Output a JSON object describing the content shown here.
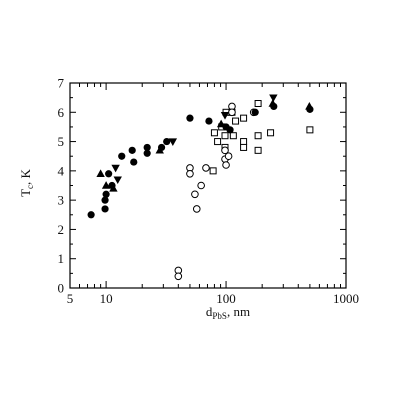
{
  "chart_data": {
    "type": "scatter",
    "title": "",
    "xlabel": "d",
    "xlabel_sub": "PbS",
    "xlabel_unit": ", nm",
    "ylabel": "T",
    "ylabel_sub": "c",
    "ylabel_unit": ", K",
    "x_scale": "log",
    "xlim": [
      5,
      1000
    ],
    "ylim": [
      0,
      7
    ],
    "x_ticks": [
      5,
      10,
      100,
      1000
    ],
    "x_tick_labels": [
      "5",
      "10",
      "100",
      "1000"
    ],
    "y_ticks": [
      0,
      1,
      2,
      3,
      4,
      5,
      6,
      7
    ],
    "y_tick_labels": [
      "0",
      "1",
      "2",
      "3",
      "4",
      "5",
      "6",
      "7"
    ],
    "grid": false,
    "series": [
      {
        "marker": "filled-circle",
        "color": "#000000",
        "points": [
          [
            7.5,
            2.5
          ],
          [
            9.8,
            2.7
          ],
          [
            9.8,
            3.0
          ],
          [
            10,
            3.2
          ],
          [
            10.5,
            3.9
          ],
          [
            11.2,
            3.5
          ],
          [
            13.5,
            4.5
          ],
          [
            16.5,
            4.7
          ],
          [
            17,
            4.3
          ],
          [
            22,
            4.8
          ],
          [
            22,
            4.6
          ],
          [
            29,
            4.8
          ],
          [
            32,
            5.0
          ],
          [
            50,
            5.8
          ],
          [
            72,
            5.7
          ],
          [
            100,
            5.5
          ],
          [
            108,
            5.4
          ],
          [
            175,
            6.0
          ],
          [
            250,
            6.2
          ],
          [
            500,
            6.1
          ]
        ]
      },
      {
        "marker": "filled-triangle-up",
        "color": "#000000",
        "points": [
          [
            9,
            3.9
          ],
          [
            10,
            3.5
          ],
          [
            11.5,
            3.4
          ],
          [
            28,
            4.7
          ],
          [
            91,
            5.6
          ],
          [
            245,
            6.3
          ],
          [
            495,
            6.2
          ]
        ]
      },
      {
        "marker": "filled-triangle-down",
        "color": "#000000",
        "points": [
          [
            12,
            4.1
          ],
          [
            12.5,
            3.7
          ],
          [
            36,
            5.0
          ],
          [
            98,
            5.9
          ],
          [
            248,
            6.5
          ]
        ]
      },
      {
        "marker": "open-circle",
        "color": "#000000",
        "points": [
          [
            40,
            0.6
          ],
          [
            40,
            0.4
          ],
          [
            50,
            4.1
          ],
          [
            50,
            3.9
          ],
          [
            55,
            3.2
          ],
          [
            57,
            2.7
          ],
          [
            62,
            3.5
          ],
          [
            68,
            4.1
          ],
          [
            98,
            4.7
          ],
          [
            98,
            4.4
          ],
          [
            100,
            4.2
          ],
          [
            105,
            4.5
          ],
          [
            112,
            6.2
          ],
          [
            112,
            6.0
          ],
          [
            170,
            6.0
          ]
        ]
      },
      {
        "marker": "open-square",
        "color": "#000000",
        "points": [
          [
            78,
            4.0
          ],
          [
            80,
            5.3
          ],
          [
            85,
            5.0
          ],
          [
            92,
            5.5
          ],
          [
            98,
            5.2
          ],
          [
            98,
            4.8
          ],
          [
            100,
            6.0
          ],
          [
            112,
            6.0
          ],
          [
            115,
            5.2
          ],
          [
            120,
            5.7
          ],
          [
            140,
            5.0
          ],
          [
            140,
            4.8
          ],
          [
            140,
            5.8
          ],
          [
            185,
            6.3
          ],
          [
            185,
            5.2
          ],
          [
            185,
            4.7
          ],
          [
            235,
            5.3
          ],
          [
            500,
            5.4
          ]
        ]
      }
    ]
  }
}
